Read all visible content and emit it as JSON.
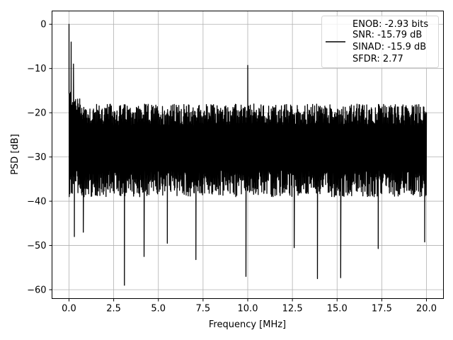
{
  "chart_data": {
    "type": "line",
    "title": "",
    "xlabel": "Frequency [MHz]",
    "ylabel": "PSD [dB]",
    "xlim": [
      -0.95,
      20.95
    ],
    "ylim": [
      -62,
      3
    ],
    "x_ticks": [
      0,
      2.5,
      5,
      7.5,
      10,
      12.5,
      15,
      17.5,
      20
    ],
    "x_tick_labels": [
      "0.0",
      "2.5",
      "5.0",
      "7.5",
      "10.0",
      "12.5",
      "15.0",
      "17.5",
      "20.0"
    ],
    "y_ticks": [
      0,
      -10,
      -20,
      -30,
      -40,
      -50,
      -60
    ],
    "y_tick_labels": [
      "0",
      "−10",
      "−20",
      "−30",
      "−40",
      "−50",
      "−60"
    ],
    "grid": true,
    "legend_position": "top-right",
    "legend_lines": [
      "ENOB: -2.93 bits",
      "SNR: -15.79 dB",
      "SINAD: -15.9 dB",
      "SFDR: 2.77"
    ],
    "series_color": "#000000",
    "series": [
      {
        "x_range": [
          0,
          20
        ],
        "noise_floor_upper_db": -22,
        "noise_floor_lower_db": -33,
        "peaks": [
          {
            "x": 0.0,
            "y": 0
          },
          {
            "x": 0.12,
            "y": -4
          },
          {
            "x": 0.25,
            "y": -9
          },
          {
            "x": 10.0,
            "y": -9.3
          }
        ],
        "dips": [
          {
            "x": 0.3,
            "y": -48
          },
          {
            "x": 0.8,
            "y": -47
          },
          {
            "x": 3.1,
            "y": -59
          },
          {
            "x": 4.2,
            "y": -52.5
          },
          {
            "x": 5.5,
            "y": -49.5
          },
          {
            "x": 7.1,
            "y": -53.2
          },
          {
            "x": 9.9,
            "y": -57
          },
          {
            "x": 12.6,
            "y": -50.5
          },
          {
            "x": 13.9,
            "y": -57.5
          },
          {
            "x": 15.2,
            "y": -57.3
          },
          {
            "x": 17.3,
            "y": -50.7
          },
          {
            "x": 19.9,
            "y": -49.2
          }
        ]
      }
    ]
  }
}
